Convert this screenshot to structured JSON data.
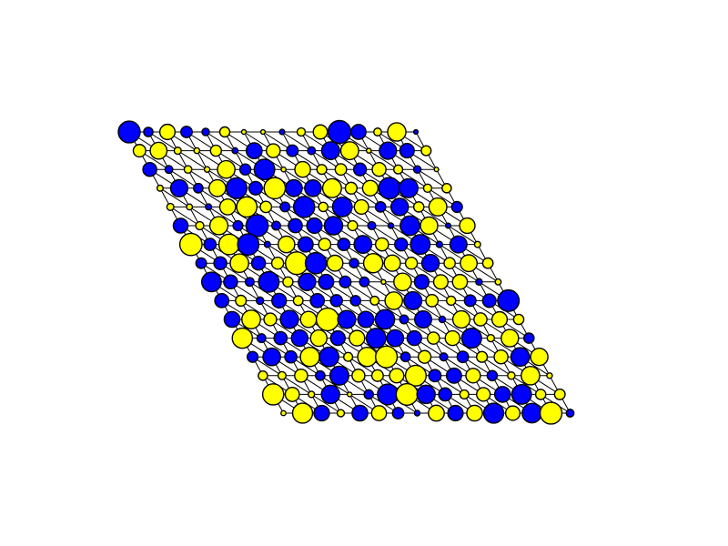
{
  "lattice": {
    "rows": 16,
    "cols": 16,
    "colors": {
      "A": "#0000ff",
      "B": "#ffff00",
      "outline": "#000000",
      "bond": "#000000",
      "background": "#ffffff"
    },
    "value_range": [
      -1,
      1
    ],
    "sites": [
      [
        -0.95,
        -0.28,
        0.6,
        -0.39,
        -0.18,
        0.32,
        0.03,
        0.02,
        -0.07,
        0.22,
        0.54,
        -1.0,
        -0.58,
        0.2,
        0.76,
        -0.02
      ],
      [
        0.45,
        0.68,
        0.16,
        0.09,
        0.37,
        -0.1,
        -0.63,
        0.52,
        -0.4,
        -0.2,
        -0.74,
        0.74,
        0.04,
        -0.7,
        -0.55,
        0.31
      ],
      [
        -0.52,
        -0.2,
        0.19,
        0.08,
        0.72,
        -0.37,
        -0.88,
        0.04,
        0.62,
        0.31,
        0.39,
        -0.46,
        0.52,
        0.26,
        -0.18,
        0.02
      ],
      [
        0.11,
        -0.7,
        -0.29,
        0.68,
        -0.89,
        -0.5,
        0.92,
        -0.68,
        -0.67,
        0.79,
        0.41,
        0.61,
        -0.93,
        -0.79,
        0.22,
        0.28
      ],
      [
        0.16,
        0.1,
        -0.11,
        0.63,
        0.87,
        0.39,
        -0.3,
        -0.91,
        0.28,
        -0.83,
        0.55,
        -0.34,
        -0.71,
        0.33,
        0.74,
        -0.36
      ],
      [
        -0.57,
        0.22,
        0.75,
        -0.31,
        -0.96,
        -0.25,
        -0.53,
        -0.6,
        -0.76,
        0.31,
        -0.21,
        -0.08,
        -0.82,
        0.71,
        -0.06,
        0.61
      ],
      [
        0.97,
        -0.43,
        0.88,
        -0.92,
        -0.11,
        0.67,
        -0.59,
        0.43,
        -0.44,
        -0.73,
        0.48,
        -0.47,
        -0.83,
        -0.12,
        -0.69,
        0.11
      ],
      [
        -0.35,
        -0.47,
        0.77,
        -0.52,
        0.42,
        0.99,
        -0.91,
        0.63,
        -0.28,
        0.81,
        0.65,
        0.42,
        -0.71,
        0.38,
        0.68,
        0.34
      ],
      [
        -0.83,
        -0.52,
        -0.25,
        -0.88,
        0.32,
        -0.71,
        -0.59,
        -0.4,
        -0.3,
        0.03,
        0.72,
        -0.56,
        0.55,
        0.58,
        -0.13,
        0.1
      ],
      [
        -0.53,
        0.36,
        -0.18,
        -0.56,
        0.3,
        -0.53,
        -0.42,
        -0.33,
        0.25,
        0.72,
        -0.74,
        0.44,
        0.27,
        -0.4,
        -0.5,
        -0.93
      ],
      [
        -0.62,
        0.78,
        0.46,
        -0.75,
        0.64,
        0.99,
        -0.74,
        -0.64,
        -0.82,
        -0.25,
        -0.69,
        -0.13,
        0.7,
        0.48,
        0.6,
        0.33
      ],
      [
        0.86,
        -0.25,
        -0.48,
        -0.66,
        0.66,
        -0.56,
        0.61,
        -0.83,
        -0.68,
        -0.56,
        0.43,
        0.57,
        -0.84,
        0.17,
        0.71,
        -0.33
      ],
      [
        -0.36,
        -0.72,
        -0.43,
        0.81,
        -0.82,
        0.26,
        0.81,
        0.94,
        -0.29,
        0.46,
        -0.21,
        -0.39,
        0.36,
        0.52,
        -0.77,
        0.71
      ],
      [
        0.28,
        0.21,
        0.48,
        -0.29,
        -0.79,
        0.47,
        0.4,
        0.55,
        0.89,
        -0.44,
        -0.59,
        0.56,
        -0.33,
        0.18,
        0.77,
        0.08
      ],
      [
        0.91,
        0.54,
        0.12,
        -0.76,
        0.03,
        -0.28,
        -0.89,
        0.94,
        -0.76,
        -0.48,
        0.26,
        0.51,
        -0.62,
        -0.83,
        0.33,
        0.35
      ],
      [
        0.05,
        0.85,
        -0.61,
        0.17,
        -0.62,
        0.58,
        -0.39,
        -0.08,
        0.63,
        -0.6,
        0.62,
        -0.85,
        0.55,
        -0.82,
        0.95,
        -0.2
      ]
    ]
  }
}
